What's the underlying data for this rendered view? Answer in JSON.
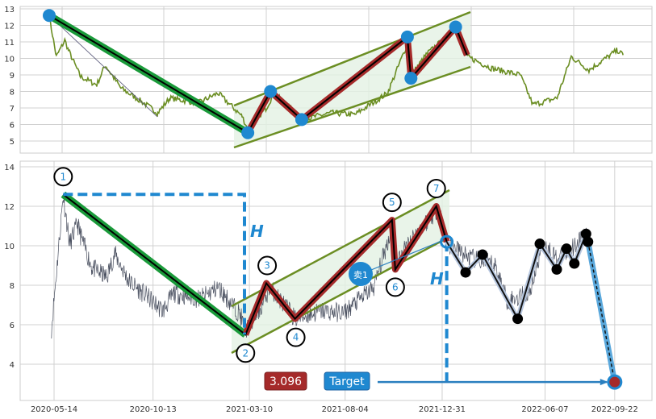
{
  "chart_data": [
    {
      "type": "line",
      "panel": "top",
      "ylim": [
        4.2,
        13.2
      ],
      "yticks": [
        "5",
        "6",
        "7",
        "8",
        "9",
        "10",
        "11",
        "12",
        "13"
      ],
      "grid": true,
      "colors": {
        "price": "#6b8e23",
        "down_leg": "#1a9a3a",
        "up_leg": "#a52a2a",
        "pivot": "#1f88d0",
        "channel": "#6b8e23",
        "channel_fill": "#e4f1e4"
      },
      "series": [
        [
          "2020-05-28",
          12.56
        ],
        [
          "2020-06-07",
          10.1
        ],
        [
          "2020-06-19",
          11.1
        ],
        [
          "2020-06-24",
          10.5
        ],
        [
          "2020-07-11",
          8.9
        ],
        [
          "2020-08-03",
          8.4
        ],
        [
          "2020-08-15",
          9.6
        ],
        [
          "2020-09-06",
          8.2
        ],
        [
          "2020-10-05",
          7.4
        ],
        [
          "2020-10-28",
          6.7
        ],
        [
          "2020-11-14",
          7.6
        ],
        [
          "2020-12-24",
          7.3
        ],
        [
          "2021-01-21",
          7.9
        ],
        [
          "2021-02-24",
          6.5
        ],
        [
          "2021-03-04",
          5.7
        ],
        [
          "2021-03-30",
          7.0
        ],
        [
          "2021-04-10",
          7.9
        ],
        [
          "2021-05-20",
          6.3
        ],
        [
          "2021-06-29",
          6.7
        ],
        [
          "2021-08-02",
          6.6
        ],
        [
          "2021-09-17",
          7.9
        ],
        [
          "2021-10-17",
          11.1
        ],
        [
          "2021-10-22",
          9.1
        ],
        [
          "2021-11-12",
          10.3
        ],
        [
          "2021-12-26",
          11.9
        ],
        [
          "2022-01-08",
          10.1
        ],
        [
          "2022-02-11",
          9.4
        ],
        [
          "2022-03-23",
          9.0
        ],
        [
          "2022-04-10",
          7.2
        ],
        [
          "2022-05-14",
          7.6
        ],
        [
          "2022-06-03",
          10.1
        ],
        [
          "2022-06-28",
          9.3
        ],
        [
          "2022-08-07",
          10.5
        ],
        [
          "2022-08-15",
          10.2
        ]
      ],
      "pivots": [
        [
          "2020-05-28",
          12.6
        ],
        [
          "2021-03-04",
          5.5
        ],
        [
          "2021-04-05",
          8.0
        ],
        [
          "2021-05-19",
          6.3
        ],
        [
          "2021-10-15",
          11.3
        ],
        [
          "2021-10-20",
          8.8
        ],
        [
          "2021-12-22",
          11.9
        ],
        [
          "2022-01-07",
          10.2
        ]
      ]
    },
    {
      "type": "line",
      "panel": "bottom",
      "ylim": [
        2.2,
        14.3
      ],
      "yticks": [
        "4",
        "6",
        "8",
        "10",
        "12",
        "14"
      ],
      "xticks": [
        "2020-05-14",
        "2020-10-13",
        "2021-03-10",
        "2021-08-04",
        "2021-12-31",
        "2022-06-07",
        "2022-09-22"
      ],
      "grid": true,
      "colors": {
        "price": "#4a5060",
        "down_leg": "#1a9a3a",
        "up_leg": "#a52a2a",
        "forecast": "#111111",
        "target_line": "#5aa8dc",
        "annotation": "#1f88d0",
        "label_red": "#a52a2a",
        "label_blue": "#1f88d0"
      },
      "pivots": [
        {
          "label": "1",
          "date": "2020-05-28",
          "value": 12.6
        },
        {
          "label": "2",
          "date": "2021-03-04",
          "value": 5.5
        },
        {
          "label": "3",
          "date": "2021-04-05",
          "value": 8.1
        },
        {
          "label": "4",
          "date": "2021-05-19",
          "value": 6.3
        },
        {
          "label": "5",
          "date": "2021-10-15",
          "value": 11.3
        },
        {
          "label": "6",
          "date": "2021-10-20",
          "value": 8.8
        },
        {
          "label": "7",
          "date": "2021-12-22",
          "value": 12.0
        }
      ],
      "breakout": {
        "date": "2022-01-07",
        "value": 10.2
      },
      "forecast_path": [
        [
          "2022-01-07",
          10.2
        ],
        [
          "2022-02-05",
          8.65
        ],
        [
          "2022-03-03",
          9.55
        ],
        [
          "2022-04-26",
          6.3
        ],
        [
          "2022-05-30",
          10.1
        ],
        [
          "2022-06-25",
          8.8
        ],
        [
          "2022-07-10",
          9.85
        ],
        [
          "2022-07-22",
          9.1
        ],
        [
          "2022-08-09",
          10.6
        ],
        [
          "2022-08-12",
          10.2
        ]
      ],
      "target": {
        "date": "2022-09-22",
        "value": 3.096
      },
      "annotations": {
        "height_label": "H",
        "sell_label": "卖1",
        "target_value": "3.096",
        "target_label": "Target"
      }
    }
  ]
}
